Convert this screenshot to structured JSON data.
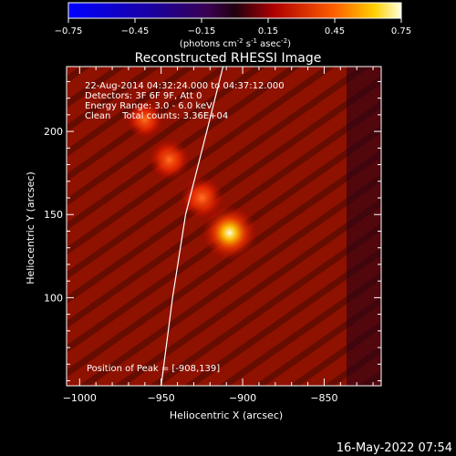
{
  "chart_data": {
    "type": "heatmap",
    "title": "Reconstructed RHESSI Image",
    "xlabel": "Heliocentric X (arcsec)",
    "ylabel": "Heliocentric Y (arcsec)",
    "xlim": [
      -1008,
      -815
    ],
    "ylim": [
      47,
      239
    ],
    "xticks": [
      -1000,
      -950,
      -900,
      -850
    ],
    "yticks": [
      100,
      150,
      200
    ],
    "colorbar": {
      "ticks": [
        -0.75,
        -0.45,
        -0.15,
        0.15,
        0.45,
        0.75
      ],
      "unit_prefix": "(photons cm",
      "unit_exp1": "-2",
      "unit_mid": " s",
      "unit_exp2": "-1",
      "unit_mid2": " asec",
      "unit_exp3": "-2",
      "unit_suffix": ")"
    },
    "sources": [
      {
        "x": -908,
        "y": 139,
        "peak": 0.75
      },
      {
        "x": -925,
        "y": 160,
        "peak": 0.45
      },
      {
        "x": -945,
        "y": 183,
        "peak": 0.4
      },
      {
        "x": -960,
        "y": 207,
        "peak": 0.3
      }
    ],
    "limb": [
      [
        -950,
        47
      ],
      [
        -943,
        100
      ],
      [
        -935,
        150
      ],
      [
        -922,
        200
      ],
      [
        -912,
        239
      ]
    ],
    "annotations": [
      "22-Aug-2014 04:32:24.000 to 04:37:12.000",
      "Detectors: 3F 6F 9F, Att 0",
      "Energy Range: 3.0 - 6.0 keV",
      "Clean    Total counts: 3.36E+04",
      "Position of Peak = [-908,139]"
    ],
    "footer_date": "16-May-2022 07:54"
  }
}
